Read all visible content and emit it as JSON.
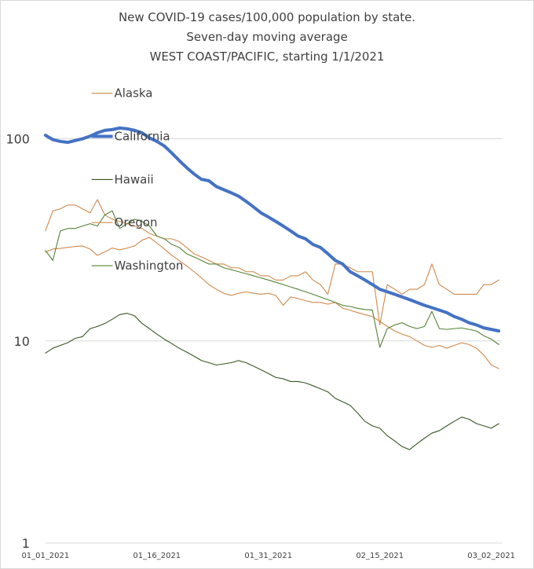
{
  "chart_data": {
    "type": "line",
    "title_lines": [
      "New COVID-19 cases/100,000 population by state.",
      "Seven-day moving average",
      "WEST COAST/PACIFIC, starting 1/1/2021"
    ],
    "y_scale": "log",
    "ylim": [
      1,
      100
    ],
    "y_ticks": [
      {
        "value": 1,
        "label": "1"
      },
      {
        "value": 10,
        "label": "10"
      },
      {
        "value": 100,
        "label": "100"
      }
    ],
    "x_tick_labels": [
      "01_01_2021",
      "01_16_2021",
      "01_31_2021",
      "02_15_2021",
      "03_02_2021"
    ],
    "x_tick_index": [
      0,
      15,
      30,
      45,
      60
    ],
    "x_count": 62,
    "grid": true,
    "legend_placement": "top-left",
    "series": [
      {
        "name": "Alaska",
        "color": "#d0884a",
        "width": 1.1,
        "values": [
          27.5,
          28.5,
          28.7,
          29.0,
          29.3,
          29.5,
          28.5,
          26.5,
          27.6,
          28.8,
          28.2,
          28.8,
          29.5,
          31.5,
          32.5,
          30.5,
          28.5,
          26.5,
          25.0,
          23.5,
          22.0,
          20.5,
          19.0,
          18.0,
          17.2,
          16.8,
          17.2,
          17.5,
          17.2,
          17.0,
          17.2,
          16.8,
          15.0,
          16.5,
          16.2,
          15.8,
          15.5,
          15.5,
          15.2,
          15.5,
          14.5,
          14.2,
          13.8,
          13.5,
          13.2,
          12.5,
          11.8,
          11.2,
          10.8,
          10.5,
          10.0,
          9.5,
          9.3,
          9.5,
          9.2,
          9.5,
          9.8,
          9.6,
          9.2,
          8.5,
          7.6,
          7.3
        ]
      },
      {
        "name": "California",
        "color": "#4472c4",
        "width": 4,
        "values": [
          104,
          99,
          97,
          96,
          98,
          100,
          103,
          107,
          110,
          111,
          113,
          112,
          110,
          107,
          101,
          97,
          92,
          85,
          78,
          72,
          67,
          63,
          62,
          58,
          56,
          54,
          52,
          49,
          46,
          43,
          41,
          39,
          37,
          35,
          33,
          32,
          30,
          29,
          27,
          25,
          24,
          22,
          21,
          20,
          19,
          18,
          17.5,
          17,
          16.5,
          16,
          15.5,
          15,
          14.6,
          14.2,
          13.8,
          13.2,
          12.8,
          12.3,
          12,
          11.6,
          11.4,
          11.2
        ]
      },
      {
        "name": "Hawaii",
        "color": "#385723",
        "width": 1.1,
        "values": [
          8.7,
          9.2,
          9.5,
          9.8,
          10.3,
          10.5,
          11.5,
          11.8,
          12.2,
          12.8,
          13.5,
          13.7,
          13.3,
          12.2,
          11.5,
          10.8,
          10.2,
          9.7,
          9.2,
          8.8,
          8.4,
          8.0,
          7.8,
          7.6,
          7.7,
          7.8,
          8.0,
          7.8,
          7.5,
          7.2,
          6.9,
          6.6,
          6.5,
          6.3,
          6.3,
          6.2,
          6.0,
          5.8,
          5.6,
          5.2,
          5.0,
          4.8,
          4.4,
          4.0,
          3.8,
          3.7,
          3.4,
          3.2,
          3.0,
          2.9,
          3.1,
          3.3,
          3.5,
          3.6,
          3.8,
          4.0,
          4.2,
          4.1,
          3.9,
          3.8,
          3.7,
          3.9
        ]
      },
      {
        "name": "Oregon",
        "color": "#d0884a",
        "width": 1.1,
        "values": [
          35,
          44,
          45,
          47,
          47,
          45,
          43,
          50,
          42,
          40,
          39,
          38,
          37,
          36,
          34,
          33,
          32,
          32,
          31,
          29,
          27,
          26,
          25,
          24,
          24,
          23,
          23,
          22,
          22,
          21,
          21,
          20,
          20,
          21,
          21,
          22,
          20,
          19,
          17,
          24,
          24,
          23,
          22,
          22,
          22,
          12,
          19,
          18,
          17,
          18,
          18,
          19,
          24,
          19,
          18,
          17,
          17,
          17,
          17,
          19,
          19,
          20
        ]
      },
      {
        "name": "Washington",
        "color": "#548235",
        "width": 1.1,
        "values": [
          28,
          25,
          35,
          36,
          36,
          37,
          38,
          37,
          42,
          44,
          36,
          38,
          40,
          39,
          37,
          33,
          32,
          30,
          29,
          27,
          26,
          25,
          24,
          24,
          23,
          22.5,
          22,
          21.5,
          21,
          20.5,
          20,
          19.5,
          19,
          18.5,
          18,
          17.5,
          17,
          16.5,
          16,
          15.5,
          15,
          14.8,
          14.5,
          14.3,
          14.2,
          9.3,
          11.5,
          12.0,
          12.3,
          11.8,
          11.5,
          11.8,
          14,
          11.5,
          11.4,
          11.5,
          11.6,
          11.4,
          11.2,
          10.6,
          10.2,
          9.6
        ]
      }
    ]
  }
}
